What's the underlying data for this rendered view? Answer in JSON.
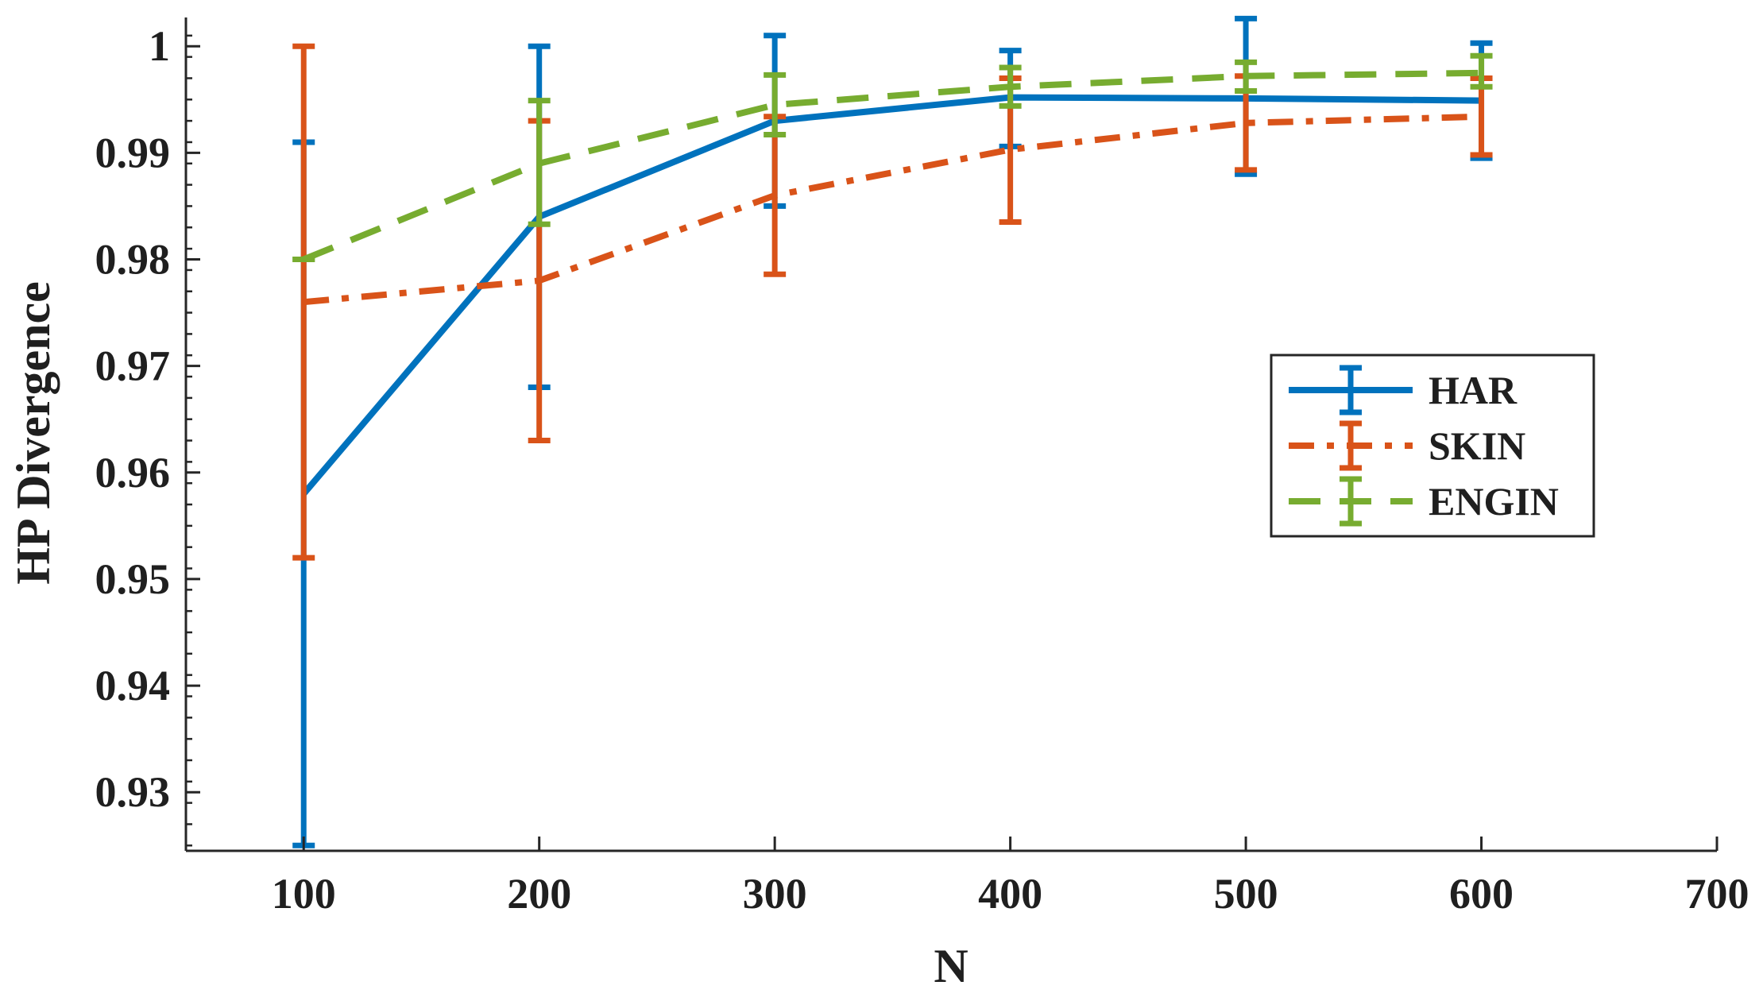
{
  "chart_data": {
    "type": "line",
    "subtype": "errorbar",
    "title": "",
    "xlabel": "N",
    "ylabel": "HP Divergence",
    "x": [
      100,
      200,
      300,
      400,
      500,
      600
    ],
    "xlim": [
      50,
      700
    ],
    "ylim": [
      0.9245,
      1.0027
    ],
    "xticks": [
      100,
      200,
      300,
      400,
      500,
      600,
      700
    ],
    "xtick_labels": [
      "100",
      "200",
      "300",
      "400",
      "500",
      "600",
      "700"
    ],
    "yticks": [
      0.93,
      0.94,
      0.95,
      0.96,
      0.97,
      0.98,
      0.99,
      1
    ],
    "ytick_labels": [
      "0.93",
      "0.94",
      "0.95",
      "0.96",
      "0.97",
      "0.98",
      "0.99",
      "1"
    ],
    "grid": false,
    "legend_position": "right-center",
    "series": [
      {
        "name": "HAR",
        "color": "#0072BD",
        "line_style": "solid",
        "values": [
          0.958,
          0.984,
          0.993,
          0.9952,
          0.9951,
          0.9949
        ],
        "lower": [
          0.925,
          0.968,
          0.985,
          0.9906,
          0.988,
          0.9895
        ],
        "upper": [
          0.991,
          1.0,
          1.001,
          0.9996,
          1.0026,
          1.0003
        ]
      },
      {
        "name": "SKIN",
        "color": "#D95319",
        "line_style": "dashdot",
        "values": [
          0.976,
          0.978,
          0.986,
          0.9903,
          0.9928,
          0.9934
        ],
        "lower": [
          0.952,
          0.963,
          0.9786,
          0.9835,
          0.9884,
          0.9898
        ],
        "upper": [
          1.0,
          0.993,
          0.9934,
          0.997,
          0.9972,
          0.997
        ]
      },
      {
        "name": "ENGIN",
        "color": "#77AC30",
        "line_style": "dashed",
        "values": [
          0.98,
          0.989,
          0.9945,
          0.9962,
          0.9972,
          0.9975
        ],
        "lower": [
          0.98,
          0.9833,
          0.9917,
          0.9944,
          0.9958,
          0.9962
        ],
        "upper": [
          0.98,
          0.9949,
          0.9973,
          0.998,
          0.9985,
          0.9991
        ]
      }
    ]
  }
}
